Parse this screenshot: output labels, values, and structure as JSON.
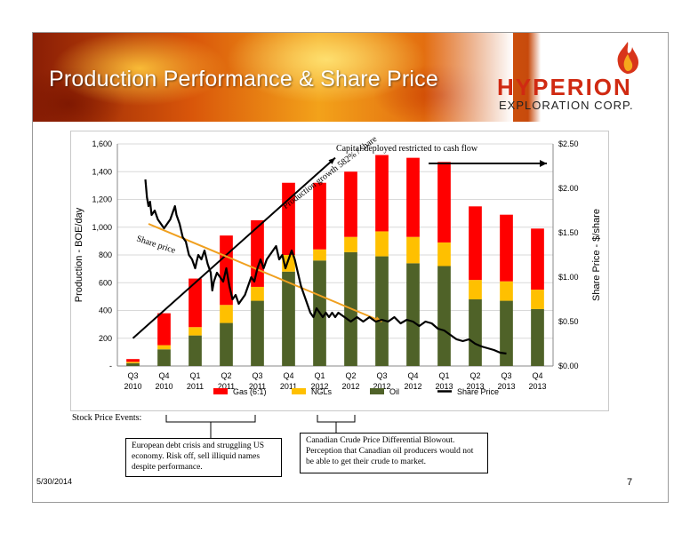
{
  "slide": {
    "title": "Production Performance & Share Price",
    "logo_name": "HYPERION",
    "logo_sub": "EXPLORATION CORP.",
    "date": "5/30/2014",
    "page": "7",
    "events_label": "Stock Price Events:",
    "events": [
      "European debt crisis and struggling US economy.  Risk off, sell illiquid names despite performance.",
      "Canadian Crude Price Differential Blowout.  Perception that Canadian oil producers would not be able to get their crude to market."
    ]
  },
  "chart_data": {
    "type": "bar",
    "stacked": true,
    "categories": [
      "Q3\n2010",
      "Q4\n2010",
      "Q1\n2011",
      "Q2\n2011",
      "Q3\n2011",
      "Q4\n2011",
      "Q1\n2012",
      "Q2\n2012",
      "Q3\n2012",
      "Q4\n2012",
      "Q1\n2013",
      "Q2\n2013",
      "Q3\n2013",
      "Q4\n2013"
    ],
    "series": [
      {
        "name": "Oil",
        "color": "#4f6228",
        "values": [
          20,
          120,
          220,
          310,
          470,
          680,
          760,
          820,
          790,
          740,
          720,
          480,
          470,
          410
        ]
      },
      {
        "name": "NGLs",
        "color": "#ffc000",
        "values": [
          10,
          30,
          60,
          130,
          100,
          120,
          80,
          110,
          180,
          190,
          170,
          140,
          140,
          140
        ]
      },
      {
        "name": "Gas (6:1)",
        "color": "#ff0000",
        "values": [
          20,
          230,
          350,
          500,
          480,
          520,
          480,
          470,
          550,
          570,
          580,
          530,
          480,
          440
        ]
      }
    ],
    "line_series": {
      "name": "Share Price",
      "color": "#000000",
      "axis": "right",
      "points": [
        [
          0.9,
          2.1
        ],
        [
          0.95,
          1.9
        ],
        [
          1.0,
          1.8
        ],
        [
          1.05,
          1.85
        ],
        [
          1.1,
          1.7
        ],
        [
          1.2,
          1.75
        ],
        [
          1.3,
          1.65
        ],
        [
          1.4,
          1.6
        ],
        [
          1.5,
          1.55
        ],
        [
          1.6,
          1.6
        ],
        [
          1.7,
          1.65
        ],
        [
          1.8,
          1.75
        ],
        [
          1.85,
          1.8
        ],
        [
          1.9,
          1.7
        ],
        [
          2.0,
          1.6
        ],
        [
          2.1,
          1.45
        ],
        [
          2.2,
          1.4
        ],
        [
          2.3,
          1.25
        ],
        [
          2.4,
          1.2
        ],
        [
          2.5,
          1.1
        ],
        [
          2.55,
          1.18
        ],
        [
          2.6,
          1.25
        ],
        [
          2.7,
          1.2
        ],
        [
          2.8,
          1.3
        ],
        [
          2.9,
          1.15
        ],
        [
          3.0,
          1.05
        ],
        [
          3.05,
          0.85
        ],
        [
          3.1,
          0.95
        ],
        [
          3.2,
          1.05
        ],
        [
          3.3,
          1.0
        ],
        [
          3.4,
          0.95
        ],
        [
          3.5,
          1.1
        ],
        [
          3.6,
          0.9
        ],
        [
          3.7,
          0.75
        ],
        [
          3.8,
          0.8
        ],
        [
          3.9,
          0.7
        ],
        [
          4.0,
          0.75
        ],
        [
          4.1,
          0.8
        ],
        [
          4.2,
          0.9
        ],
        [
          4.3,
          1.0
        ],
        [
          4.4,
          0.95
        ],
        [
          4.5,
          1.1
        ],
        [
          4.6,
          1.2
        ],
        [
          4.7,
          1.1
        ],
        [
          4.8,
          1.2
        ],
        [
          4.9,
          1.25
        ],
        [
          5.0,
          1.3
        ],
        [
          5.1,
          1.35
        ],
        [
          5.2,
          1.2
        ],
        [
          5.3,
          1.25
        ],
        [
          5.4,
          1.1
        ],
        [
          5.5,
          1.2
        ],
        [
          5.6,
          1.3
        ],
        [
          5.7,
          1.2
        ],
        [
          5.8,
          1.05
        ],
        [
          5.9,
          0.9
        ],
        [
          6.0,
          0.8
        ],
        [
          6.1,
          0.7
        ],
        [
          6.2,
          0.6
        ],
        [
          6.3,
          0.55
        ],
        [
          6.4,
          0.65
        ],
        [
          6.5,
          0.6
        ],
        [
          6.6,
          0.55
        ],
        [
          6.7,
          0.6
        ],
        [
          6.8,
          0.55
        ],
        [
          6.9,
          0.6
        ],
        [
          7.0,
          0.55
        ],
        [
          7.1,
          0.6
        ],
        [
          7.3,
          0.55
        ],
        [
          7.5,
          0.5
        ],
        [
          7.7,
          0.55
        ],
        [
          7.9,
          0.5
        ],
        [
          8.1,
          0.55
        ],
        [
          8.3,
          0.5
        ],
        [
          8.5,
          0.52
        ],
        [
          8.7,
          0.5
        ],
        [
          8.9,
          0.55
        ],
        [
          9.1,
          0.48
        ],
        [
          9.3,
          0.52
        ],
        [
          9.5,
          0.5
        ],
        [
          9.7,
          0.45
        ],
        [
          9.9,
          0.5
        ],
        [
          10.1,
          0.48
        ],
        [
          10.3,
          0.42
        ],
        [
          10.5,
          0.4
        ],
        [
          10.7,
          0.35
        ],
        [
          10.9,
          0.3
        ],
        [
          11.1,
          0.28
        ],
        [
          11.3,
          0.3
        ],
        [
          11.5,
          0.25
        ],
        [
          11.7,
          0.22
        ],
        [
          11.9,
          0.2
        ],
        [
          12.1,
          0.18
        ],
        [
          12.3,
          0.15
        ],
        [
          12.5,
          0.14
        ]
      ]
    },
    "ylabel": "Production - BOE/day",
    "y2label": "Share Price - $/share",
    "ylim": [
      0,
      1600
    ],
    "y2lim": [
      0,
      2.5
    ],
    "yticks": [
      "-",
      "200",
      "400",
      "600",
      "800",
      "1,000",
      "1,200",
      "1,400",
      "1,600"
    ],
    "y2ticks": [
      "$0.00",
      "$0.50",
      "$1.00",
      "$1.50",
      "$2.00",
      "$2.50"
    ],
    "legend": [
      "Gas (6:1)",
      "NGLs",
      "Oil",
      "Share Price"
    ],
    "legend_position": "bottom",
    "annotations": {
      "capital": "Capital deployed restricted to cash flow",
      "growth": "Production growth 582% / share",
      "share_price": "Share price"
    },
    "trend_lines": {
      "production": {
        "from": [
          0,
          200
        ],
        "to": [
          6.5,
          1500
        ],
        "color": "#000000"
      },
      "share_price": {
        "from": [
          0.5,
          1.6
        ],
        "to": [
          8.0,
          0.5
        ],
        "color": "#f0a020"
      }
    }
  }
}
